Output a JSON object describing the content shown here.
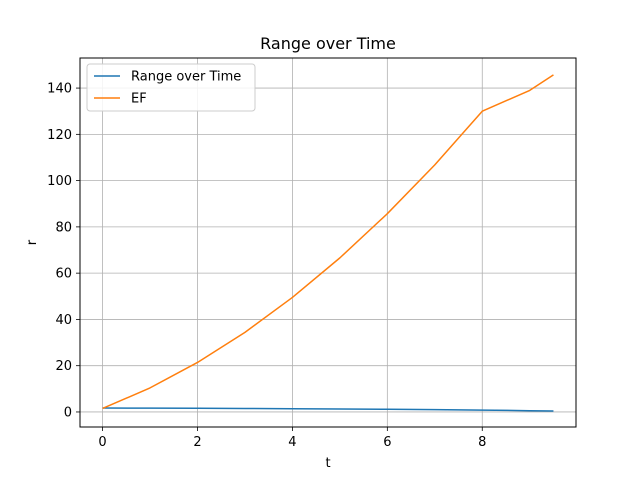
{
  "chart_data": {
    "type": "line",
    "title": "Range over Time",
    "xlabel": "t",
    "ylabel": "r",
    "xlim": [
      -0.475,
      9.975
    ],
    "ylim": [
      -6.5,
      153.0
    ],
    "xticks": [
      0,
      2,
      4,
      6,
      8
    ],
    "yticks": [
      0,
      20,
      40,
      60,
      80,
      100,
      120,
      140
    ],
    "grid": true,
    "legend_position": "top-left",
    "series": [
      {
        "name": "Range over Time",
        "color": "#1f77b4",
        "x": [
          0,
          1,
          2,
          3,
          4,
          5,
          6,
          7,
          8,
          9,
          9.5
        ],
        "y": [
          1.7,
          1.65,
          1.6,
          1.5,
          1.4,
          1.3,
          1.15,
          1.0,
          0.8,
          0.55,
          0.4
        ]
      },
      {
        "name": "EF",
        "color": "#ff7f0e",
        "x": [
          0,
          1,
          2,
          3,
          4,
          5,
          6,
          7,
          8,
          9,
          9.5
        ],
        "y": [
          1.5,
          10.4,
          21.4,
          34.4,
          49.5,
          66.6,
          85.7,
          106.8,
          130.0,
          139.0,
          145.7
        ]
      }
    ]
  }
}
